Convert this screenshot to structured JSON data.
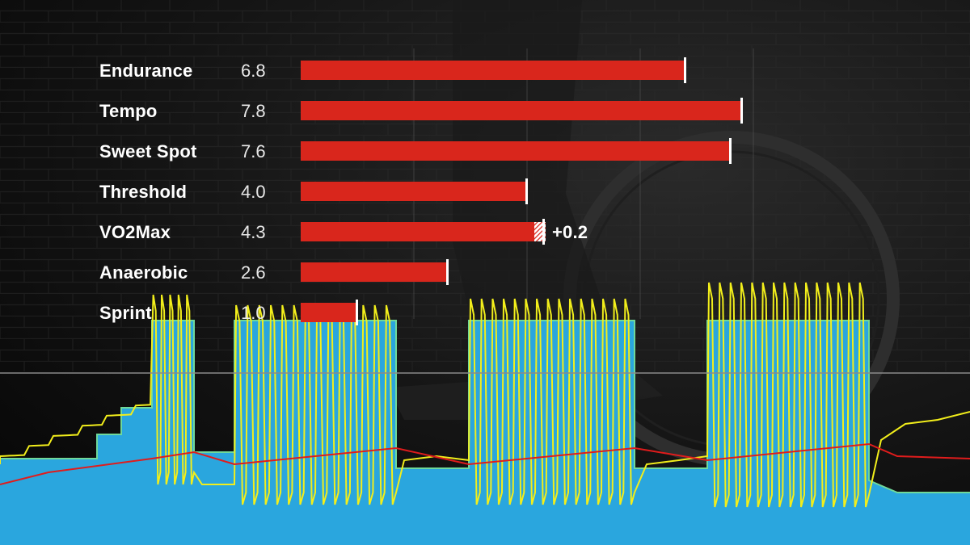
{
  "colors": {
    "bar": "#d9261c",
    "marker": "#ffffff",
    "power": "#f2ee1b",
    "workout_fill": "#2aa6de",
    "workout_edge": "#6fd89a",
    "heart_rate": "#e01c1c",
    "ftp_line": "#8a8a8a"
  },
  "chart_data": [
    {
      "type": "bar",
      "orientation": "horizontal",
      "categories": [
        "Endurance",
        "Tempo",
        "Sweet Spot",
        "Threshold",
        "VO2Max",
        "Anaerobic",
        "Sprint"
      ],
      "value_labels": [
        "6.8",
        "7.8",
        "7.6",
        "4.0",
        "4.3",
        "2.6",
        "1.0"
      ],
      "values": [
        6.8,
        7.8,
        7.6,
        4.0,
        4.3,
        2.6,
        1.0
      ],
      "increase": [
        null,
        null,
        null,
        null,
        0.2,
        null,
        null
      ],
      "increase_label": "+0.2",
      "xlim": [
        0,
        10
      ],
      "grid": true
    },
    {
      "type": "area",
      "description_series": [
        "workout target (area)",
        "power (line)",
        "heart rate (line)"
      ],
      "grid": false
    }
  ]
}
